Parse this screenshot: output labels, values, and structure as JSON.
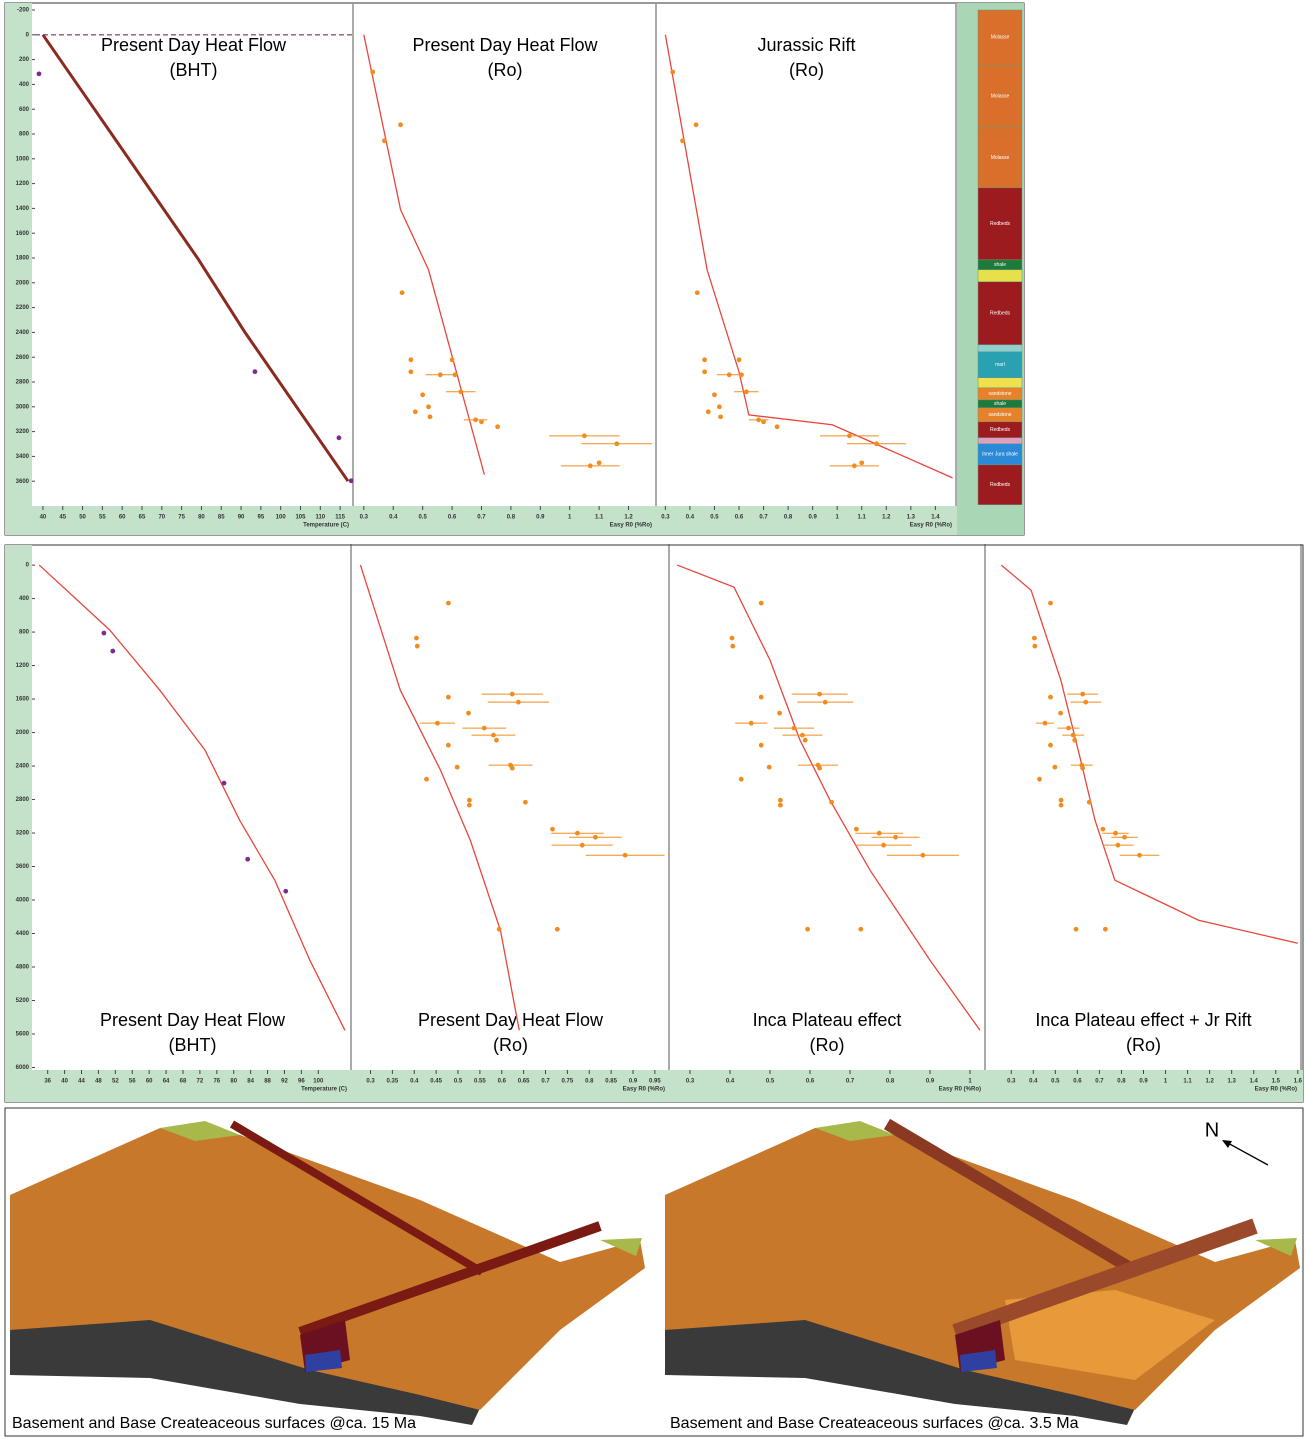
{
  "chart_data": [
    {
      "type": "line",
      "title": "Present Day Heat Flow",
      "subtitle": "(BHT)",
      "xlabel": "Temperature (C)",
      "xlim": [
        38,
        118
      ],
      "ylim": [
        -200,
        3800
      ],
      "xticks": [
        40,
        45,
        50,
        55,
        60,
        65,
        70,
        75,
        80,
        85,
        90,
        95,
        100,
        105,
        110,
        115
      ],
      "yticks": [
        -200,
        0,
        200,
        400,
        600,
        800,
        1000,
        1200,
        1400,
        1600,
        1800,
        2000,
        2200,
        2400,
        2600,
        2800,
        3000,
        3200,
        3400,
        3600
      ],
      "reference_line": 0,
      "series": [
        {
          "kind": "line",
          "color": "#8b2a1e",
          "line_width": 3,
          "x": [
            40,
            53,
            66,
            79,
            91,
            104,
            117
          ],
          "y": [
            0,
            600,
            1200,
            1800,
            2400,
            3000,
            3600
          ]
        },
        {
          "kind": "scatter",
          "color": "#7b2d8e",
          "x": [
            39,
            93.5,
            114.7,
            117.8
          ],
          "y": [
            315,
            2717,
            3250,
            3597
          ]
        }
      ]
    },
    {
      "type": "line",
      "title": "Present Day Heat Flow",
      "subtitle": "(Ro)",
      "xlabel": "Easy R0 (%Ro)",
      "xlim": [
        0.27,
        1.29
      ],
      "ylim": [
        -200,
        3800
      ],
      "xticks": [
        0.3,
        0.4,
        0.5,
        0.6,
        0.7,
        0.8,
        0.9,
        1,
        1.1,
        1.2
      ],
      "series": [
        {
          "kind": "line",
          "color": "#e8463c",
          "line_width": 1.3,
          "x": [
            0.3,
            0.425,
            0.52,
            0.71
          ],
          "y": [
            0,
            1411,
            1895,
            3548
          ]
        },
        {
          "kind": "scatter",
          "color": "#f28c1e",
          "x": [
            0.33,
            0.425,
            0.37,
            0.43,
            0.46,
            0.46,
            0.5,
            0.6,
            0.56,
            0.61,
            0.63,
            0.52,
            0.475,
            0.525,
            0.68,
            0.7,
            0.755,
            1.05,
            1.16,
            1.07,
            1.1
          ],
          "y": [
            300,
            726,
            855,
            2080,
            2621,
            2718,
            2903,
            2621,
            2742,
            2742,
            2879,
            3000,
            3040,
            3081,
            3105,
            3121,
            3161,
            3234,
            3298,
            3476,
            3452
          ],
          "xerr": [
            null,
            null,
            null,
            null,
            null,
            null,
            null,
            null,
            0.05,
            null,
            0.05,
            null,
            null,
            null,
            0.04,
            null,
            null,
            0.12,
            0.12,
            0.1,
            null
          ]
        }
      ]
    },
    {
      "type": "line",
      "title": "Jurassic Rift",
      "subtitle": "(Ro)",
      "xlabel": "Easy R0 (%Ro)",
      "xlim": [
        0.27,
        1.48
      ],
      "ylim": [
        -200,
        3800
      ],
      "xticks": [
        0.3,
        0.4,
        0.5,
        0.6,
        0.7,
        0.8,
        0.9,
        1,
        1.1,
        1.2,
        1.3,
        1.4
      ],
      "series": [
        {
          "kind": "line",
          "color": "#e8463c",
          "line_width": 1.3,
          "x": [
            0.3,
            0.47,
            0.6,
            0.64,
            0.98,
            1.47
          ],
          "y": [
            0,
            1895,
            2718,
            3065,
            3145,
            3573
          ]
        },
        {
          "kind": "scatter",
          "color": "#f28c1e",
          "x": [
            0.33,
            0.425,
            0.37,
            0.43,
            0.46,
            0.46,
            0.5,
            0.6,
            0.56,
            0.61,
            0.63,
            0.52,
            0.475,
            0.525,
            0.68,
            0.7,
            0.755,
            1.05,
            1.16,
            1.07,
            1.1
          ],
          "y": [
            300,
            726,
            855,
            2080,
            2621,
            2718,
            2903,
            2621,
            2742,
            2742,
            2879,
            3000,
            3040,
            3081,
            3105,
            3121,
            3161,
            3234,
            3298,
            3476,
            3452
          ],
          "xerr": [
            null,
            null,
            null,
            null,
            null,
            null,
            null,
            null,
            0.05,
            null,
            0.05,
            null,
            null,
            null,
            0.04,
            null,
            null,
            0.12,
            0.12,
            0.1,
            null
          ]
        }
      ]
    },
    {
      "type": "line",
      "title": "Present Day Heat Flow",
      "subtitle": "(BHT)",
      "xlabel": "Temperature (C)",
      "xlim": [
        33,
        107.5
      ],
      "ylim": [
        -180,
        6030
      ],
      "xticks": [
        36,
        40,
        44,
        48,
        52,
        56,
        60,
        64,
        68,
        72,
        76,
        80,
        84,
        88,
        92,
        96,
        100
      ],
      "yticks": [
        0,
        400,
        800,
        1200,
        1600,
        2000,
        2400,
        2800,
        3200,
        3600,
        4000,
        4400,
        4800,
        5200,
        5600,
        6000
      ],
      "series": [
        {
          "kind": "line",
          "color": "#e8463c",
          "line_width": 1.3,
          "x": [
            34,
            50.7,
            62.5,
            73.2,
            81.4,
            89.7,
            98,
            106.3
          ],
          "y": [
            0,
            777,
            1493,
            2210,
            3047,
            3763,
            4719,
            5556
          ]
        },
        {
          "kind": "scatter",
          "color": "#7b2d8e",
          "x": [
            49.3,
            51.4,
            77.7,
            83.3,
            92.3
          ],
          "y": [
            812,
            1027,
            2604,
            3513,
            3895
          ]
        }
      ]
    },
    {
      "type": "line",
      "title": "Present Day Heat Flow",
      "subtitle": "(Ro)",
      "xlabel": "Easy R0 (%Ro)",
      "xlim": [
        0.26,
        0.98
      ],
      "ylim": [
        -180,
        6030
      ],
      "xticks": [
        0.3,
        0.35,
        0.4,
        0.45,
        0.5,
        0.55,
        0.6,
        0.65,
        0.7,
        0.75,
        0.8,
        0.85,
        0.9,
        0.95
      ],
      "series": [
        {
          "kind": "line",
          "color": "#e8463c",
          "line_width": 1.3,
          "x": [
            0.277,
            0.368,
            0.46,
            0.528,
            0.597,
            0.64
          ],
          "y": [
            0,
            1493,
            2449,
            3285,
            4361,
            5556
          ]
        },
        {
          "kind": "scatter",
          "color": "#f28c1e",
          "x": [
            0.478,
            0.405,
            0.407,
            0.478,
            0.624,
            0.638,
            0.453,
            0.524,
            0.56,
            0.581,
            0.588,
            0.478,
            0.498,
            0.62,
            0.624,
            0.428,
            0.526,
            0.526,
            0.654,
            0.716,
            0.773,
            0.814,
            0.784,
            0.882,
            0.594,
            0.727
          ],
          "y": [
            454,
            872,
            968,
            1577,
            1541,
            1637,
            1888,
            1768,
            1947,
            2031,
            2091,
            2151,
            2413,
            2389,
            2425,
            2557,
            2808,
            2867,
            2832,
            3154,
            3202,
            3250,
            3345,
            3465,
            4349,
            4349
          ],
          "xerr": [
            null,
            null,
            null,
            null,
            0.07,
            0.07,
            0.04,
            null,
            0.05,
            0.05,
            null,
            null,
            null,
            0.05,
            null,
            null,
            null,
            null,
            null,
            null,
            0.06,
            0.06,
            0.07,
            0.09,
            null,
            null
          ]
        }
      ]
    },
    {
      "type": "line",
      "title": "Inca Plateau effect",
      "subtitle": "(Ro)",
      "xlabel": "Easy R0 (%Ro)",
      "xlim": [
        0.25,
        1.035
      ],
      "ylim": [
        -180,
        6030
      ],
      "xticks": [
        0.3,
        0.4,
        0.5,
        0.6,
        0.7,
        0.8,
        0.9,
        1
      ],
      "series": [
        {
          "kind": "line",
          "color": "#e8463c",
          "line_width": 1.3,
          "x": [
            0.268,
            0.41,
            0.5,
            0.575,
            0.65,
            0.75,
            0.9,
            1.025
          ],
          "y": [
            0,
            263,
            1135,
            2091,
            2808,
            3644,
            4719,
            5556
          ]
        },
        {
          "kind": "scatter",
          "color": "#f28c1e",
          "x": [
            0.478,
            0.405,
            0.407,
            0.478,
            0.624,
            0.638,
            0.453,
            0.524,
            0.56,
            0.581,
            0.588,
            0.478,
            0.498,
            0.62,
            0.624,
            0.428,
            0.526,
            0.526,
            0.654,
            0.716,
            0.773,
            0.814,
            0.784,
            0.882,
            0.594,
            0.727
          ],
          "y": [
            454,
            872,
            968,
            1577,
            1541,
            1637,
            1888,
            1768,
            1947,
            2031,
            2091,
            2151,
            2413,
            2389,
            2425,
            2557,
            2808,
            2867,
            2832,
            3154,
            3202,
            3250,
            3345,
            3465,
            4349,
            4349
          ],
          "xerr": [
            null,
            null,
            null,
            null,
            0.07,
            0.07,
            0.04,
            null,
            0.05,
            0.05,
            null,
            null,
            null,
            0.05,
            null,
            null,
            null,
            null,
            null,
            null,
            0.06,
            0.06,
            0.07,
            0.09,
            null,
            null
          ]
        }
      ]
    },
    {
      "type": "line",
      "title": "Inca Plateau effect + Jr Rift",
      "subtitle": "(Ro)",
      "xlabel": "Easy R0 (%Ro)",
      "xlim": [
        0.19,
        1.61
      ],
      "ylim": [
        -180,
        6030
      ],
      "xticks": [
        0.3,
        0.4,
        0.5,
        0.6,
        0.7,
        0.8,
        0.9,
        1,
        1.1,
        1.2,
        1.3,
        1.4,
        1.5,
        1.6
      ],
      "series": [
        {
          "kind": "line",
          "color": "#e8463c",
          "line_width": 1.3,
          "x": [
            0.255,
            0.39,
            0.525,
            0.615,
            0.68,
            0.77,
            1.15,
            1.6
          ],
          "y": [
            0,
            300,
            1374,
            2330,
            3047,
            3763,
            4241,
            4516
          ]
        },
        {
          "kind": "scatter",
          "color": "#f28c1e",
          "x": [
            0.478,
            0.405,
            0.407,
            0.478,
            0.624,
            0.638,
            0.453,
            0.524,
            0.56,
            0.581,
            0.588,
            0.478,
            0.498,
            0.62,
            0.624,
            0.428,
            0.526,
            0.526,
            0.654,
            0.716,
            0.773,
            0.814,
            0.784,
            0.882,
            0.594,
            0.727
          ],
          "y": [
            454,
            872,
            968,
            1577,
            1541,
            1637,
            1888,
            1768,
            1947,
            2031,
            2091,
            2151,
            2413,
            2389,
            2425,
            2557,
            2808,
            2867,
            2832,
            3154,
            3202,
            3250,
            3345,
            3465,
            4349,
            4349
          ],
          "xerr": [
            null,
            null,
            null,
            null,
            0.07,
            0.07,
            0.04,
            null,
            0.05,
            0.05,
            null,
            null,
            null,
            0.05,
            null,
            null,
            null,
            null,
            null,
            null,
            0.06,
            0.06,
            0.07,
            0.09,
            null,
            null
          ]
        }
      ]
    }
  ],
  "lithology": {
    "layers": [
      {
        "label": "Molasse",
        "color": "#d86f2a",
        "top": -200,
        "base": 242
      },
      {
        "label": "Molasse",
        "color": "#d86f2a",
        "top": 242,
        "base": 750
      },
      {
        "label": "Molasse",
        "color": "#d86f2a",
        "top": 750,
        "base": 1234
      },
      {
        "label": "Redbeds",
        "color": "#9b1b1e",
        "top": 1234,
        "base": 1815
      },
      {
        "label": "shale",
        "color": "#1e7a3a",
        "top": 1815,
        "base": 1895
      },
      {
        "label": null,
        "color": "#e8e04a",
        "top": 1895,
        "base": 1992
      },
      {
        "label": "Redbeds",
        "color": "#9b1b1e",
        "top": 1992,
        "base": 2500
      },
      {
        "label": null,
        "color": "#8fd0d0",
        "top": 2500,
        "base": 2556
      },
      {
        "label": "marl",
        "color": "#2aa1b0",
        "top": 2556,
        "base": 2766
      },
      {
        "label": null,
        "color": "#f0e050",
        "top": 2766,
        "base": 2847
      },
      {
        "label": "sandstone",
        "color": "#e8822a",
        "top": 2847,
        "base": 2944
      },
      {
        "label": "shale",
        "color": "#1e7a3a",
        "top": 2944,
        "base": 3008
      },
      {
        "label": "sandstone",
        "color": "#e8822a",
        "top": 3008,
        "base": 3121
      },
      {
        "label": "Redbeds",
        "color": "#9b1b1e",
        "top": 3121,
        "base": 3250
      },
      {
        "label": null,
        "color": "#e0a0c0",
        "top": 3250,
        "base": 3298
      },
      {
        "label": "Inner Jura shale",
        "color": "#2a8ad8",
        "top": 3298,
        "base": 3468
      },
      {
        "label": "Redbeds",
        "color": "#9b1b1e",
        "top": 3468,
        "base": 3790
      }
    ]
  },
  "maps": [
    {
      "caption": "Basement and Base Createaceous surfaces @ca. 15 Ma"
    },
    {
      "caption": "Basement and Base Createaceous surfaces @ca. 3.5 Ma"
    }
  ],
  "north_label": "N"
}
